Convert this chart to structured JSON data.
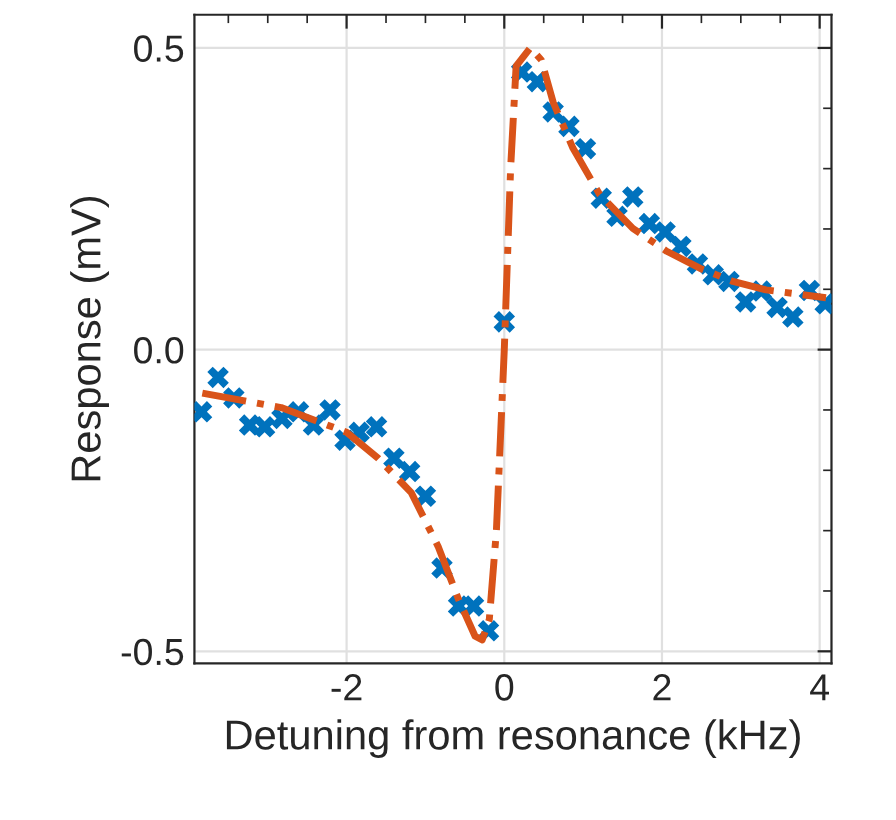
{
  "chart_data": {
    "type": "scatter",
    "xlabel": "Detuning from resonance (kHz)",
    "ylabel": "Response (mV)",
    "xlim": [
      -3.93,
      4.15
    ],
    "ylim": [
      -0.52,
      0.555
    ],
    "xticks": [
      -2,
      0,
      2,
      4
    ],
    "yticks": [
      -0.5,
      {
        "value": 0,
        "label": "0.0"
      },
      0.5
    ],
    "grid": true,
    "series": [
      {
        "color": "#0072bd",
        "marker": "cross",
        "x": [
          -3.84,
          -3.63,
          -3.43,
          -3.23,
          -3.04,
          -2.82,
          -2.61,
          -2.42,
          -2.21,
          -2.02,
          -1.84,
          -1.62,
          -1.4,
          -1.2,
          -1.0,
          -0.79,
          -0.58,
          -0.39,
          -0.2,
          0.0,
          0.22,
          0.42,
          0.62,
          0.82,
          1.03,
          1.23,
          1.43,
          1.63,
          1.84,
          2.04,
          2.24,
          2.45,
          2.65,
          2.85,
          3.06,
          3.26,
          3.46,
          3.66,
          3.87,
          4.07
        ],
        "values": [
          -0.103,
          -0.046,
          -0.08,
          -0.125,
          -0.128,
          -0.114,
          -0.103,
          -0.125,
          -0.1,
          -0.15,
          -0.137,
          -0.128,
          -0.18,
          -0.202,
          -0.243,
          -0.362,
          -0.425,
          -0.425,
          -0.466,
          0.046,
          0.46,
          0.444,
          0.394,
          0.37,
          0.333,
          0.251,
          0.221,
          0.253,
          0.209,
          0.195,
          0.171,
          0.142,
          0.124,
          0.113,
          0.079,
          0.097,
          0.07,
          0.054,
          0.098,
          0.076
        ]
      },
      {
        "type": "line",
        "color": "#d95319",
        "line_style": "dashdot",
        "x": [
          -3.83,
          -2.83,
          -2.0,
          -1.6,
          -1.18,
          -0.84,
          -0.58,
          -0.37,
          -0.28,
          -0.19,
          -0.1,
          0.0,
          0.08,
          0.15,
          0.33,
          0.47,
          0.62,
          0.87,
          1.21,
          1.63,
          2.06,
          2.48,
          2.9,
          3.32,
          4.08
        ],
        "values": [
          -0.072,
          -0.096,
          -0.137,
          -0.18,
          -0.237,
          -0.326,
          -0.414,
          -0.475,
          -0.481,
          -0.447,
          -0.3,
          0.0,
          0.3,
          0.47,
          0.5,
          0.48,
          0.41,
          0.334,
          0.257,
          0.201,
          0.163,
          0.135,
          0.113,
          0.099,
          0.086
        ]
      }
    ]
  }
}
